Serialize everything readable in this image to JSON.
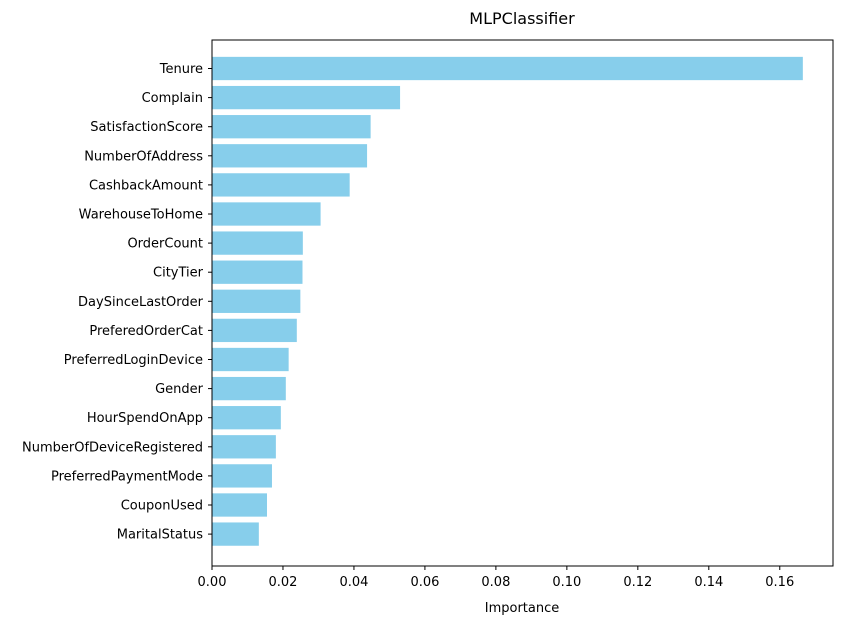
{
  "chart_data": {
    "type": "bar",
    "orientation": "horizontal",
    "title": "MLPClassifier",
    "xlabel": "Importance",
    "ylabel": "",
    "xlim": [
      0,
      0.175
    ],
    "xticks": [
      "0.00",
      "0.02",
      "0.04",
      "0.06",
      "0.08",
      "0.10",
      "0.12",
      "0.14",
      "0.16"
    ],
    "grid": false,
    "bar_color": "#87CEEB",
    "categories": [
      "Tenure",
      "Complain",
      "SatisfactionScore",
      "NumberOfAddress",
      "CashbackAmount",
      "WarehouseToHome",
      "OrderCount",
      "CityTier",
      "DaySinceLastOrder",
      "PreferedOrderCat",
      "PreferredLoginDevice",
      "Gender",
      "HourSpendOnApp",
      "NumberOfDeviceRegistered",
      "PreferredPaymentMode",
      "CouponUsed",
      "MaritalStatus"
    ],
    "values": [
      0.1665,
      0.053,
      0.0447,
      0.0437,
      0.0388,
      0.0306,
      0.0256,
      0.0255,
      0.0249,
      0.0239,
      0.0216,
      0.0208,
      0.0194,
      0.018,
      0.0169,
      0.0155,
      0.0132
    ]
  }
}
